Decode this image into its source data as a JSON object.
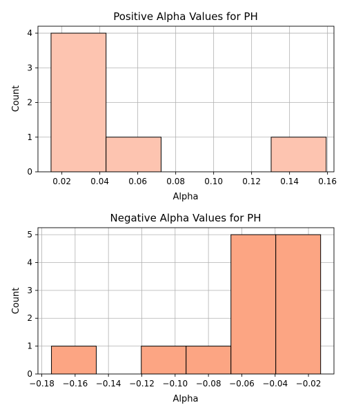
{
  "chart_data": [
    {
      "type": "bar",
      "title": "Positive Alpha Values for PH",
      "xlabel": "Alpha",
      "ylabel": "Count",
      "bar_color": "#fdc4b0",
      "xlim": [
        0.0074,
        0.1634
      ],
      "ylim": [
        0,
        4.2
      ],
      "grid": true,
      "xticks": [
        0.02,
        0.04,
        0.06,
        0.08,
        0.1,
        0.12,
        0.14,
        0.16
      ],
      "xtick_labels": [
        "0.02",
        "0.04",
        "0.06",
        "0.08",
        "0.10",
        "0.12",
        "0.14",
        "0.16"
      ],
      "yticks": [
        0,
        1,
        2,
        3,
        4
      ],
      "ytick_labels": [
        "0",
        "1",
        "2",
        "3",
        "4"
      ],
      "bins": [
        {
          "x0": 0.0143,
          "x1": 0.0433,
          "count": 4
        },
        {
          "x0": 0.0433,
          "x1": 0.0723,
          "count": 1
        },
        {
          "x0": 0.0723,
          "x1": 0.1013,
          "count": 0
        },
        {
          "x0": 0.1013,
          "x1": 0.1303,
          "count": 0
        },
        {
          "x0": 0.1303,
          "x1": 0.1593,
          "count": 1
        }
      ]
    },
    {
      "type": "bar",
      "title": "Negative Alpha Values for PH",
      "xlabel": "Alpha",
      "ylabel": "Count",
      "bar_color": "#fca583",
      "xlim": [
        -0.1823,
        -0.0047
      ],
      "ylim": [
        0,
        5.25
      ],
      "grid": true,
      "xticks": [
        -0.18,
        -0.16,
        -0.14,
        -0.12,
        -0.1,
        -0.08,
        -0.06,
        -0.04,
        -0.02
      ],
      "xtick_labels": [
        "−0.18",
        "−0.16",
        "−0.14",
        "−0.12",
        "−0.10",
        "−0.08",
        "−0.06",
        "−0.04",
        "−0.02"
      ],
      "yticks": [
        0,
        1,
        2,
        3,
        4,
        5
      ],
      "ytick_labels": [
        "0",
        "1",
        "2",
        "3",
        "4",
        "5"
      ],
      "bins": [
        {
          "x0": -0.1742,
          "x1": -0.1473,
          "count": 1
        },
        {
          "x0": -0.1473,
          "x1": -0.1203,
          "count": 0
        },
        {
          "x0": -0.1203,
          "x1": -0.0934,
          "count": 1
        },
        {
          "x0": -0.0934,
          "x1": -0.0665,
          "count": 1
        },
        {
          "x0": -0.0665,
          "x1": -0.0396,
          "count": 5
        },
        {
          "x0": -0.0396,
          "x1": -0.0127,
          "count": 5
        }
      ]
    }
  ]
}
